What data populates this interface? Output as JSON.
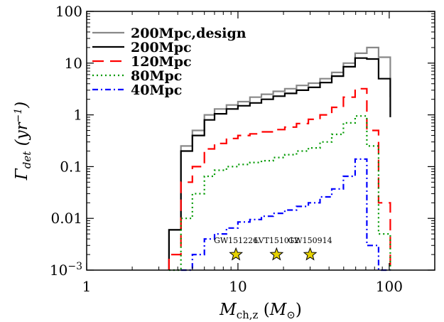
{
  "chart_data": {
    "type": "line",
    "title": "",
    "xlabel_main": "M",
    "xlabel_sub": "ch,z",
    "xlabel_paren_open": " (",
    "xlabel_unit_main": "M",
    "xlabel_unit_sub": "⊙",
    "xlabel_paren_close": ")",
    "ylabel_main": "Γ",
    "ylabel_sub": "det",
    "ylabel_unit": " (yr",
    "ylabel_unit_sup": "−1",
    "ylabel_close": ")",
    "x_scale": "log",
    "y_scale": "log",
    "xlim": [
      1,
      200
    ],
    "ylim": [
      0.001,
      100
    ],
    "x_ticks": [
      {
        "value": 1,
        "label": "1"
      },
      {
        "value": 10,
        "label": "10"
      },
      {
        "value": 100,
        "label": "100"
      }
    ],
    "y_ticks": [
      {
        "value": 0.001,
        "label_main": "10",
        "label_sup": "−3"
      },
      {
        "value": 0.01,
        "label_main": "0.01",
        "label_sup": ""
      },
      {
        "value": 0.1,
        "label_main": "0.1",
        "label_sup": ""
      },
      {
        "value": 1,
        "label_main": "1",
        "label_sup": ""
      },
      {
        "value": 10,
        "label_main": "10",
        "label_sup": ""
      },
      {
        "value": 100,
        "label_main": "100",
        "label_sup": ""
      }
    ],
    "bin_edges": [
      3.5,
      4.2,
      5.0,
      6.0,
      7.0,
      8.4,
      10.0,
      12.0,
      14.3,
      17.1,
      20.4,
      24.4,
      29.2,
      34.9,
      41.7,
      49.8,
      59.5,
      71.1,
      85.0,
      101.6
    ],
    "legend_position": "upper-left",
    "series": [
      {
        "name": "200Mpc,design",
        "color": "#888888",
        "dash": "solid",
        "values": [
          0.006,
          0.25,
          0.5,
          1.0,
          1.3,
          1.55,
          1.8,
          2.2,
          2.5,
          2.85,
          3.2,
          3.7,
          4.1,
          5.0,
          6.6,
          10.0,
          15.5,
          20.0,
          13.0,
          2.2
        ]
      },
      {
        "name": "200Mpc",
        "color": "#000000",
        "dash": "solid",
        "values": [
          0.006,
          0.2,
          0.4,
          0.8,
          1.05,
          1.3,
          1.5,
          1.7,
          2.0,
          2.3,
          2.6,
          3.0,
          3.4,
          4.2,
          5.6,
          8.5,
          12.5,
          12.0,
          5.0,
          0.9
        ]
      },
      {
        "name": "120Mpc",
        "color": "#ff0000",
        "dash": "long-dash",
        "values": [
          0.002,
          0.05,
          0.1,
          0.22,
          0.28,
          0.35,
          0.4,
          0.43,
          0.47,
          0.52,
          0.58,
          0.68,
          0.82,
          1.0,
          1.4,
          2.2,
          3.2,
          0.5,
          0.02
        ]
      },
      {
        "name": "80Mpc",
        "color": "#009900",
        "dash": "dotted",
        "values": [
          0.001,
          0.01,
          0.03,
          0.065,
          0.085,
          0.1,
          0.11,
          0.12,
          0.13,
          0.15,
          0.17,
          0.2,
          0.23,
          0.3,
          0.42,
          0.7,
          0.95,
          0.25,
          0.005
        ]
      },
      {
        "name": "40Mpc",
        "color": "#0000ff",
        "dash": "dash-dot",
        "values": [
          null,
          0.001,
          0.002,
          0.004,
          0.005,
          0.0065,
          0.0085,
          0.0095,
          0.011,
          0.0125,
          0.0145,
          0.017,
          0.02,
          0.026,
          0.037,
          0.065,
          0.14,
          0.003,
          0.0008
        ]
      }
    ],
    "annotations": [
      {
        "label": "GW151226",
        "x": 9.7,
        "y": 0.002,
        "marker": "star",
        "color": "#e6d200"
      },
      {
        "label": "LVT151012",
        "x": 18.0,
        "y": 0.002,
        "marker": "star",
        "color": "#e6d200"
      },
      {
        "label": "GW150914",
        "x": 30.0,
        "y": 0.002,
        "marker": "star",
        "color": "#e6d200"
      }
    ]
  }
}
